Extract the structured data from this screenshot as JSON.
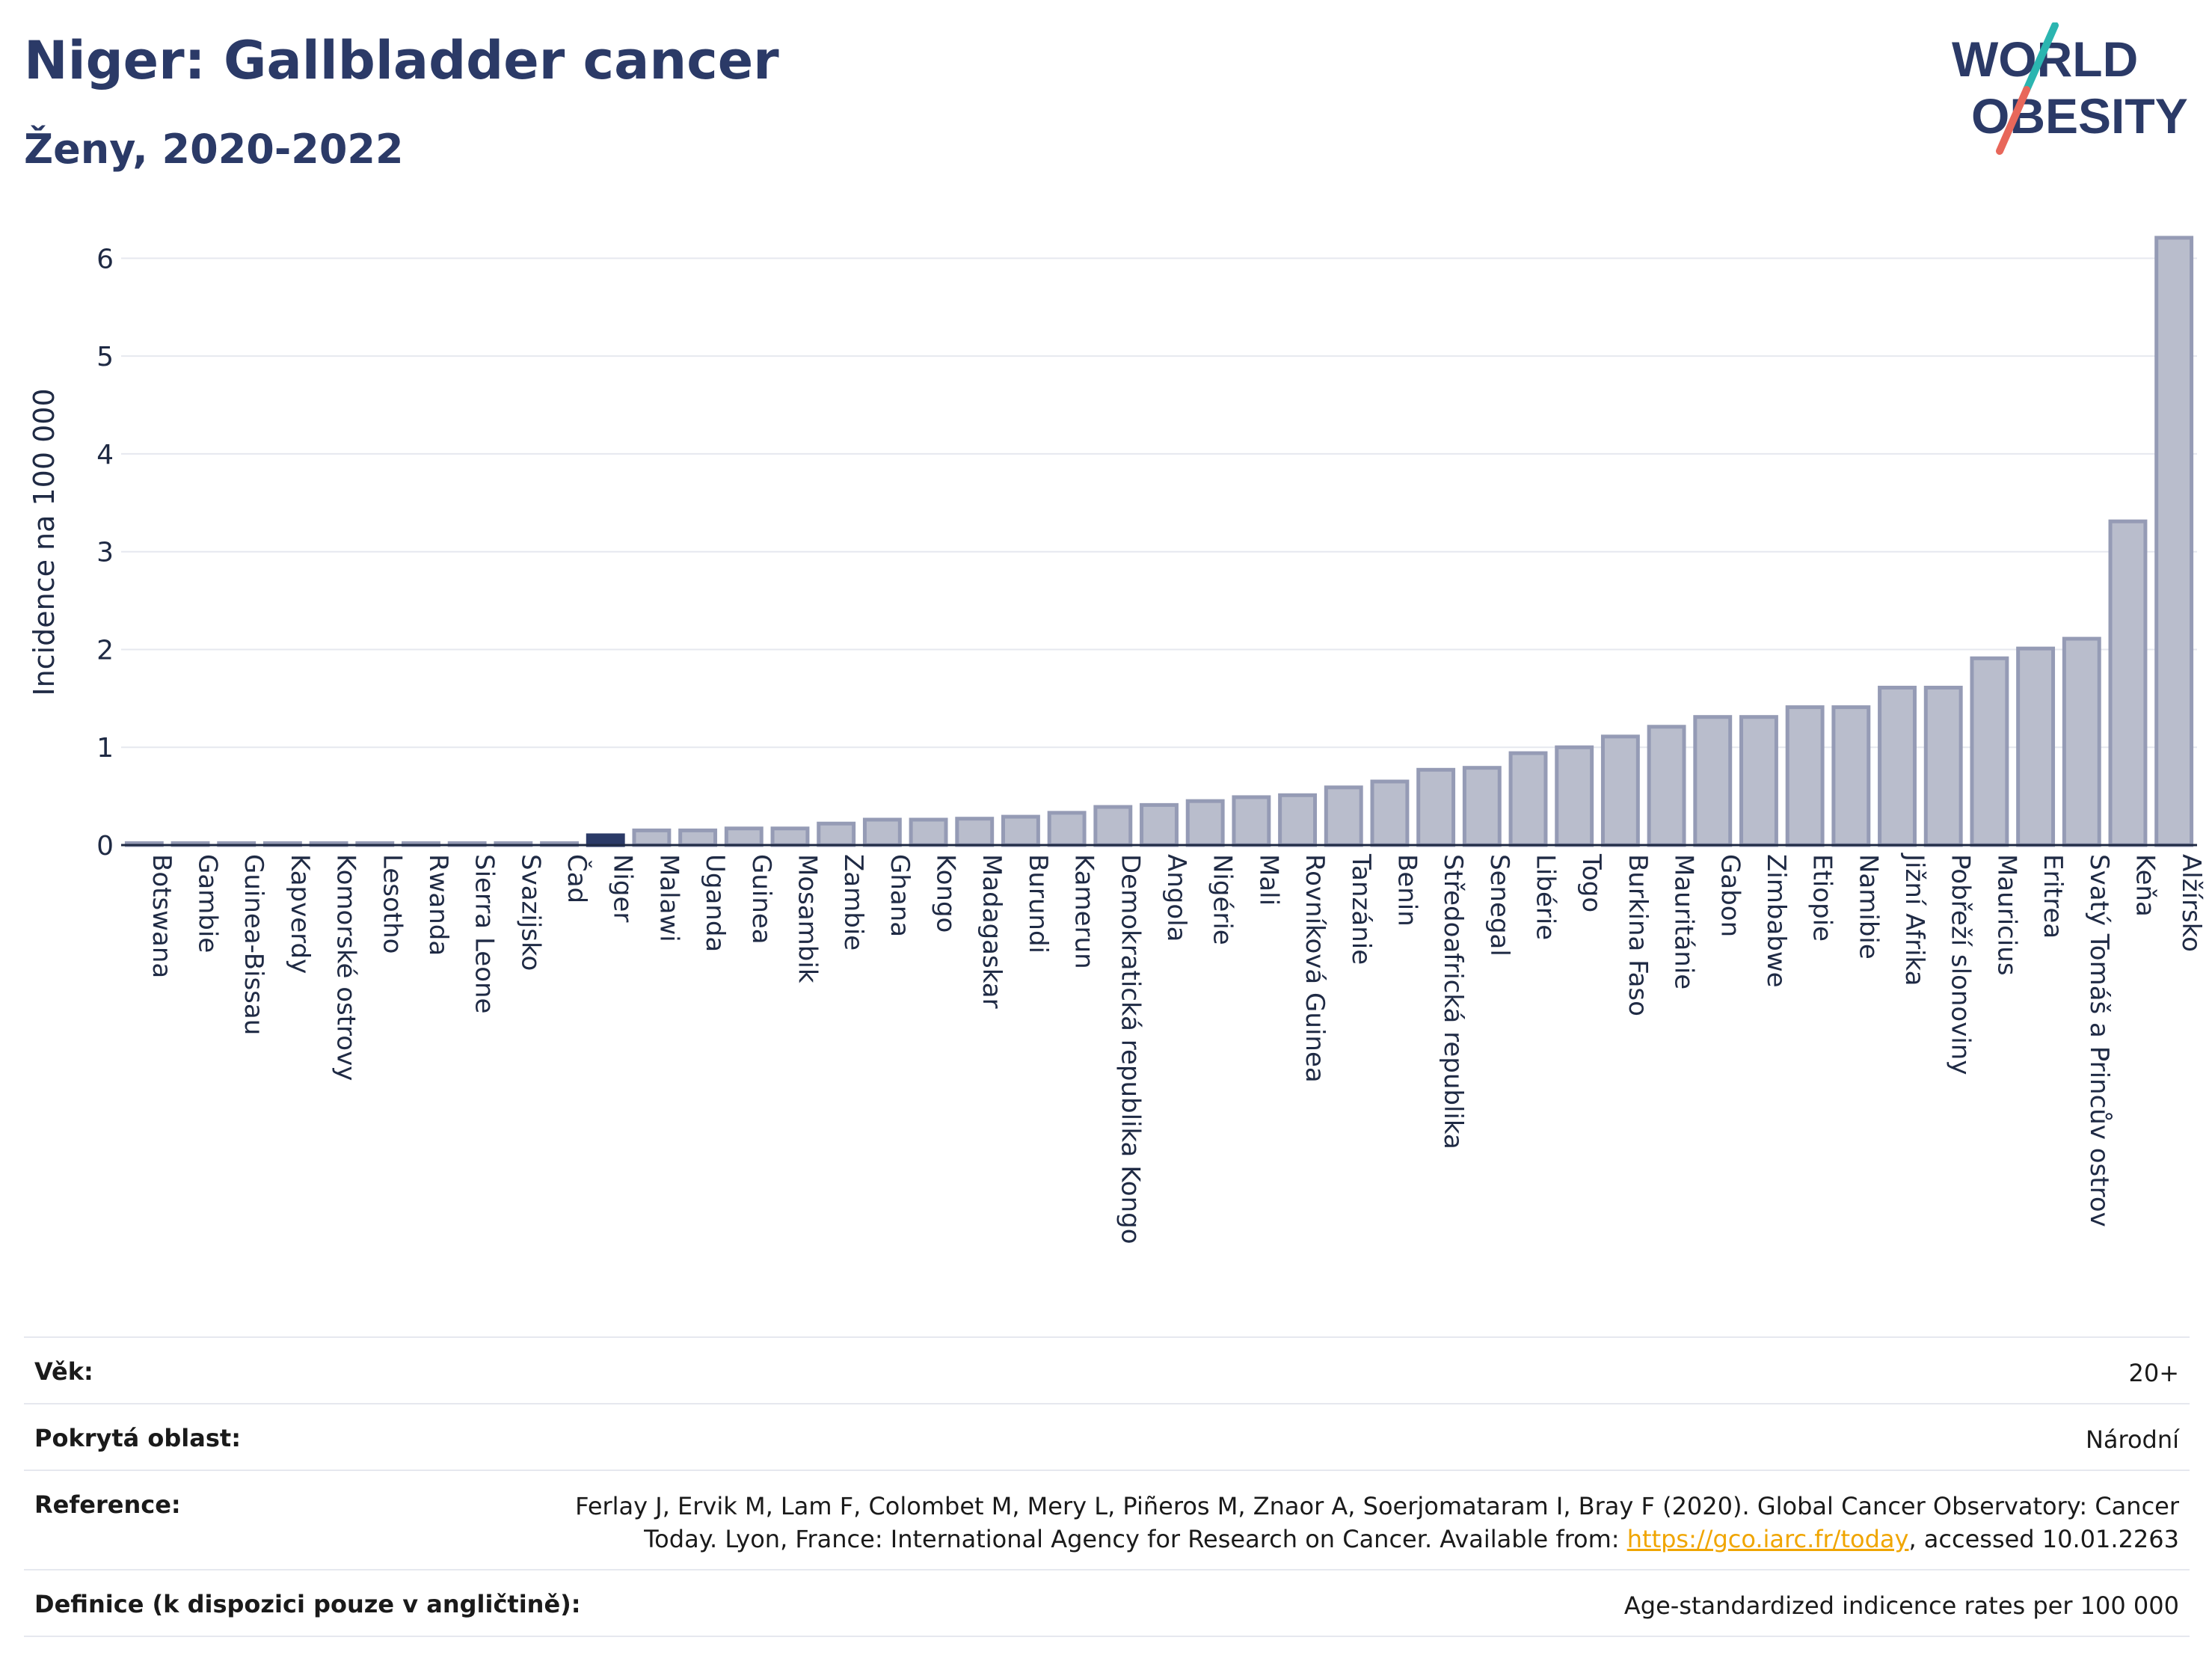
{
  "header": {
    "title": "Niger: Gallbladder cancer",
    "subtitle": "Ženy, 2020-2022",
    "logo_line1": "WORLD",
    "logo_line2": "OBESITY"
  },
  "colors": {
    "bar": "#b9bdcc",
    "bar_stroke": "#959bb5",
    "highlight": "#2b3a67",
    "grid": "#e6e8ef",
    "text": "#1f2a44",
    "logo_teal": "#2bb5b0",
    "logo_red": "#e8675a"
  },
  "chart_data": {
    "type": "bar",
    "title": "Niger: Gallbladder cancer",
    "subtitle": "Ženy, 2020-2022",
    "ylabel": "Incidence na 100 000",
    "xlabel": "",
    "ylim": [
      0,
      6.5
    ],
    "yticks": [
      0,
      1,
      2,
      3,
      4,
      5,
      6
    ],
    "grid": true,
    "highlight": "Niger",
    "categories": [
      "Botswana",
      "Gambie",
      "Guinea-Bissau",
      "Kapverdy",
      "Komorské ostrovy",
      "Lesotho",
      "Rwanda",
      "Sierra Leone",
      "Svazijsko",
      "Čad",
      "Niger",
      "Malawi",
      "Uganda",
      "Guinea",
      "Mosambik",
      "Zambie",
      "Ghana",
      "Kongo",
      "Madagaskar",
      "Burundi",
      "Kamerun",
      "Demokratická republika Kongo",
      "Angola",
      "Nigérie",
      "Mali",
      "Rovníková Guinea",
      "Tanzánie",
      "Benin",
      "Středoafrická republika",
      "Senegal",
      "Libérie",
      "Togo",
      "Burkina Faso",
      "Mauritánie",
      "Gabon",
      "Zimbabwe",
      "Etiopie",
      "Namibie",
      "Jižní Afrika",
      "Pobřeží slonoviny",
      "Mauricius",
      "Eritrea",
      "Svatý Tomáš a Princův ostrov",
      "Keňa",
      "Alžírsko"
    ],
    "values": [
      0.02,
      0.02,
      0.02,
      0.02,
      0.02,
      0.02,
      0.02,
      0.02,
      0.02,
      0.02,
      0.1,
      0.15,
      0.15,
      0.17,
      0.17,
      0.22,
      0.26,
      0.26,
      0.27,
      0.29,
      0.33,
      0.39,
      0.41,
      0.45,
      0.49,
      0.51,
      0.59,
      0.65,
      0.77,
      0.79,
      0.94,
      1.0,
      1.11,
      1.21,
      1.31,
      1.31,
      1.41,
      1.41,
      1.61,
      1.61,
      1.91,
      2.01,
      2.11,
      3.31,
      6.21
    ]
  },
  "info": {
    "age_label": "Věk:",
    "age_value": "20+",
    "area_label": "Pokrytá oblast:",
    "area_value": "Národní",
    "reference_label": "Reference:",
    "reference_text_1": "Ferlay J, Ervik M, Lam F, Colombet M, Mery L, Piñeros M, Znaor A, Soerjomataram I, Bray F (2020). Global Cancer Observatory: Cancer Today. Lyon, France: International Agency for Research on Cancer. Available from: ",
    "reference_link": "https://gco.iarc.fr/today",
    "reference_text_2": ", accessed 10.01.2263",
    "definition_label": "Definice (k dispozici pouze v angličtině):",
    "definition_value": "Age-standardized indicence rates per 100 000"
  }
}
